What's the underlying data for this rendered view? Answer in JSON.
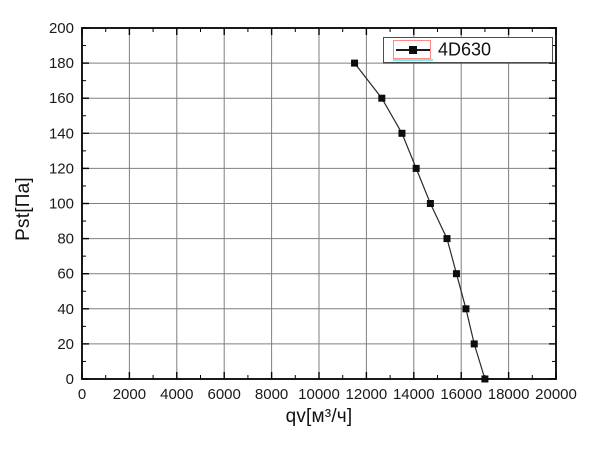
{
  "chart_data": {
    "type": "line",
    "title": "",
    "xlabel": "qv[м³/ч]",
    "ylabel": "Pst[Па]",
    "xlim": [
      0,
      20000
    ],
    "ylim": [
      0,
      200
    ],
    "x_major_ticks": [
      0,
      2000,
      4000,
      6000,
      8000,
      10000,
      12000,
      14000,
      16000,
      18000,
      20000
    ],
    "y_major_ticks": [
      0,
      20,
      40,
      60,
      80,
      100,
      120,
      140,
      160,
      180,
      200
    ],
    "x_minor_step": 1000,
    "y_minor_step": 10,
    "grid": true,
    "legend_position": "top-right-inside",
    "series": [
      {
        "name": "4D630",
        "marker": "square",
        "line_style": "solid",
        "color": "#0d0d0d",
        "points": [
          [
            11500,
            180
          ],
          [
            12650,
            160
          ],
          [
            13500,
            140
          ],
          [
            14100,
            120
          ],
          [
            14700,
            100
          ],
          [
            15400,
            80
          ],
          [
            15800,
            60
          ],
          [
            16200,
            40
          ],
          [
            16550,
            20
          ],
          [
            17000,
            0
          ]
        ]
      }
    ]
  },
  "colors": {
    "background": "#ffffff",
    "grid": "#7f7f7f",
    "frame": "#000000",
    "tick_label": "#1a1a1a",
    "series_line": "#2a2a2a",
    "marker": "#0d0d0d",
    "legend_border": "#4d4d4d",
    "legend_selection": "#ff8989",
    "legend_underline": "#7ce9e9"
  }
}
